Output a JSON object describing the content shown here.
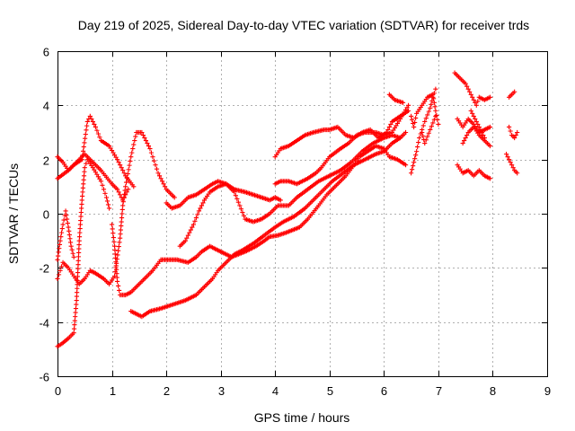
{
  "chart_data": {
    "type": "scatter",
    "title": "Day 219 of 2025, Sidereal Day-to-day VTEC variation (SDTVAR) for receiver trds",
    "xlabel": "GPS time / hours",
    "ylabel": "SDTVAR / TECUs",
    "xlim": [
      0,
      9
    ],
    "ylim": [
      -6,
      6
    ],
    "xticks": [
      0,
      1,
      2,
      3,
      4,
      5,
      6,
      7,
      8,
      9
    ],
    "yticks": [
      -6,
      -4,
      -2,
      0,
      2,
      4,
      6
    ],
    "grid": true,
    "marker": "+",
    "color": "#ff0000",
    "series": [
      {
        "points": [
          [
            0.0,
            2.1
          ],
          [
            0.1,
            1.9
          ],
          [
            0.2,
            1.6
          ],
          [
            0.35,
            1.9
          ],
          [
            0.5,
            2.2
          ],
          [
            0.65,
            1.9
          ],
          [
            0.8,
            1.6
          ],
          [
            1.0,
            1.1
          ],
          [
            1.1,
            0.9
          ],
          [
            1.2,
            0.5
          ],
          [
            1.3,
            0.9
          ]
        ]
      },
      {
        "points": [
          [
            0.0,
            1.3
          ],
          [
            0.1,
            1.45
          ],
          [
            0.2,
            1.6
          ],
          [
            0.3,
            1.8
          ],
          [
            0.45,
            2.0
          ],
          [
            0.55,
            3.4
          ],
          [
            0.6,
            3.6
          ],
          [
            0.7,
            3.2
          ],
          [
            0.8,
            2.7
          ],
          [
            0.95,
            2.5
          ],
          [
            1.1,
            2.0
          ],
          [
            1.25,
            1.4
          ],
          [
            1.4,
            1.0
          ]
        ]
      },
      {
        "points": [
          [
            0.0,
            -2.4
          ],
          [
            0.1,
            -1.8
          ],
          [
            0.2,
            -2.0
          ],
          [
            0.3,
            -2.3
          ],
          [
            0.4,
            -2.6
          ],
          [
            0.5,
            -2.4
          ],
          [
            0.6,
            -2.1
          ],
          [
            0.7,
            -2.2
          ],
          [
            0.85,
            -2.4
          ],
          [
            0.95,
            -2.6
          ],
          [
            1.05,
            -2.3
          ],
          [
            1.15,
            -0.9
          ],
          [
            1.2,
            0.3
          ],
          [
            1.25,
            1.0
          ],
          [
            1.35,
            2.1
          ],
          [
            1.45,
            3.0
          ],
          [
            1.55,
            3.0
          ],
          [
            1.7,
            2.4
          ],
          [
            1.85,
            1.5
          ],
          [
            2.0,
            0.9
          ],
          [
            2.15,
            0.6
          ]
        ]
      },
      {
        "points": [
          [
            0.0,
            -4.9
          ],
          [
            0.08,
            -4.8
          ],
          [
            0.2,
            -4.6
          ],
          [
            0.3,
            -4.4
          ],
          [
            0.35,
            -3.2
          ],
          [
            0.4,
            -1.0
          ],
          [
            0.45,
            0.5
          ],
          [
            0.5,
            1.7
          ],
          [
            0.55,
            2.0
          ],
          [
            0.65,
            1.7
          ],
          [
            0.8,
            1.2
          ],
          [
            0.9,
            0.6
          ],
          [
            0.95,
            0.2
          ]
        ]
      },
      {
        "points": [
          [
            0.0,
            -1.7
          ],
          [
            0.05,
            -1.0
          ],
          [
            0.1,
            -0.4
          ],
          [
            0.15,
            0.1
          ],
          [
            0.2,
            -0.5
          ],
          [
            0.25,
            -1.2
          ],
          [
            0.3,
            -1.6
          ]
        ]
      },
      {
        "points": [
          [
            1.0,
            -0.4
          ],
          [
            1.05,
            -1.2
          ],
          [
            1.1,
            -2.5
          ],
          [
            1.15,
            -3.0
          ],
          [
            1.25,
            -3.0
          ],
          [
            1.35,
            -2.9
          ],
          [
            1.45,
            -2.7
          ],
          [
            1.6,
            -2.4
          ],
          [
            1.75,
            -2.1
          ],
          [
            1.9,
            -1.7
          ],
          [
            2.05,
            -1.7
          ],
          [
            2.2,
            -1.7
          ],
          [
            2.4,
            -1.8
          ],
          [
            2.55,
            -1.6
          ],
          [
            2.65,
            -1.4
          ],
          [
            2.8,
            -1.2
          ],
          [
            3.0,
            -1.4
          ],
          [
            3.2,
            -1.6
          ],
          [
            3.45,
            -1.4
          ],
          [
            3.65,
            -1.2
          ],
          [
            3.8,
            -1.0
          ],
          [
            3.9,
            -0.85
          ],
          [
            4.05,
            -0.8
          ],
          [
            4.2,
            -0.7
          ],
          [
            4.45,
            -0.5
          ],
          [
            4.6,
            -0.2
          ],
          [
            4.8,
            0.3
          ],
          [
            4.95,
            0.7
          ],
          [
            5.1,
            1.0
          ],
          [
            5.3,
            1.4
          ],
          [
            5.45,
            1.8
          ],
          [
            5.55,
            2.1
          ],
          [
            5.7,
            2.3
          ],
          [
            5.85,
            2.5
          ],
          [
            6.0,
            2.4
          ],
          [
            6.1,
            2.1
          ],
          [
            6.25,
            2.0
          ],
          [
            6.4,
            1.8
          ]
        ]
      },
      {
        "points": [
          [
            1.35,
            -3.6
          ],
          [
            1.45,
            -3.7
          ],
          [
            1.55,
            -3.8
          ],
          [
            1.7,
            -3.6
          ],
          [
            1.9,
            -3.5
          ],
          [
            2.05,
            -3.4
          ],
          [
            2.2,
            -3.3
          ],
          [
            2.35,
            -3.2
          ],
          [
            2.55,
            -3.0
          ],
          [
            2.7,
            -2.7
          ],
          [
            2.85,
            -2.4
          ],
          [
            2.95,
            -2.1
          ],
          [
            3.1,
            -1.8
          ],
          [
            3.25,
            -1.5
          ],
          [
            3.4,
            -1.35
          ],
          [
            3.6,
            -1.1
          ],
          [
            3.8,
            -0.8
          ],
          [
            4.0,
            -0.5
          ],
          [
            4.15,
            -0.3
          ],
          [
            4.35,
            -0.1
          ],
          [
            4.55,
            0.2
          ],
          [
            4.7,
            0.5
          ],
          [
            4.9,
            0.9
          ],
          [
            5.05,
            1.2
          ],
          [
            5.25,
            1.5
          ],
          [
            5.45,
            1.8
          ],
          [
            5.65,
            2.0
          ],
          [
            5.85,
            2.2
          ],
          [
            6.0,
            2.3
          ],
          [
            6.15,
            2.6
          ],
          [
            6.3,
            2.8
          ],
          [
            6.4,
            3.0
          ]
        ]
      },
      {
        "points": [
          [
            2.0,
            0.4
          ],
          [
            2.1,
            0.2
          ],
          [
            2.25,
            0.3
          ],
          [
            2.4,
            0.6
          ],
          [
            2.55,
            0.7
          ],
          [
            2.7,
            0.9
          ],
          [
            2.85,
            1.1
          ],
          [
            2.95,
            1.2
          ],
          [
            3.1,
            1.1
          ],
          [
            3.25,
            0.9
          ],
          [
            3.45,
            0.8
          ],
          [
            3.6,
            0.7
          ],
          [
            3.75,
            0.6
          ],
          [
            3.9,
            0.5
          ],
          [
            4.0,
            0.6
          ],
          [
            4.1,
            0.5
          ]
        ]
      },
      {
        "points": [
          [
            2.25,
            -1.2
          ],
          [
            2.35,
            -1.0
          ],
          [
            2.5,
            -0.4
          ],
          [
            2.6,
            0.1
          ],
          [
            2.7,
            0.5
          ],
          [
            2.8,
            0.8
          ],
          [
            2.95,
            1.0
          ],
          [
            3.1,
            1.1
          ],
          [
            3.25,
            0.8
          ],
          [
            3.35,
            0.3
          ],
          [
            3.45,
            -0.2
          ],
          [
            3.6,
            -0.3
          ],
          [
            3.75,
            -0.2
          ],
          [
            3.9,
            0.0
          ],
          [
            4.05,
            0.3
          ],
          [
            4.15,
            0.3
          ],
          [
            4.25,
            0.3
          ],
          [
            4.4,
            0.6
          ],
          [
            4.6,
            0.9
          ],
          [
            4.8,
            1.2
          ],
          [
            5.0,
            1.4
          ],
          [
            5.2,
            1.6
          ],
          [
            5.4,
            1.9
          ],
          [
            5.6,
            2.3
          ],
          [
            5.8,
            2.6
          ],
          [
            6.0,
            2.8
          ],
          [
            6.15,
            2.9
          ],
          [
            6.3,
            2.8
          ]
        ]
      },
      {
        "points": [
          [
            4.0,
            1.1
          ],
          [
            4.1,
            1.2
          ],
          [
            4.25,
            1.2
          ],
          [
            4.4,
            1.1
          ],
          [
            4.6,
            1.3
          ],
          [
            4.75,
            1.5
          ],
          [
            4.85,
            1.7
          ],
          [
            5.0,
            2.1
          ],
          [
            5.2,
            2.4
          ],
          [
            5.35,
            2.6
          ],
          [
            5.5,
            2.9
          ],
          [
            5.65,
            3.0
          ],
          [
            5.85,
            3.0
          ],
          [
            6.0,
            2.9
          ],
          [
            6.15,
            3.0
          ],
          [
            6.3,
            3.5
          ],
          [
            6.45,
            4.0
          ]
        ]
      },
      {
        "points": [
          [
            4.0,
            2.1
          ],
          [
            4.1,
            2.4
          ],
          [
            4.25,
            2.5
          ],
          [
            4.4,
            2.7
          ],
          [
            4.55,
            2.9
          ],
          [
            4.7,
            3.0
          ],
          [
            4.9,
            3.1
          ],
          [
            5.0,
            3.1
          ],
          [
            5.15,
            3.2
          ],
          [
            5.3,
            2.9
          ],
          [
            5.45,
            2.8
          ],
          [
            5.6,
            3.0
          ],
          [
            5.75,
            3.1
          ],
          [
            5.9,
            2.8
          ],
          [
            6.05,
            3.0
          ],
          [
            6.15,
            3.4
          ],
          [
            6.3,
            3.6
          ],
          [
            6.45,
            3.8
          ]
        ]
      },
      {
        "points": [
          [
            6.1,
            4.4
          ],
          [
            6.2,
            4.2
          ],
          [
            6.35,
            4.1
          ]
        ]
      },
      {
        "points": [
          [
            6.5,
            3.6
          ],
          [
            6.55,
            3.2
          ],
          [
            6.6,
            3.7
          ],
          [
            6.7,
            4.0
          ],
          [
            6.8,
            4.3
          ],
          [
            6.9,
            4.4
          ],
          [
            6.95,
            3.8
          ],
          [
            7.0,
            3.3
          ]
        ]
      },
      {
        "points": [
          [
            6.5,
            1.5
          ],
          [
            6.55,
            1.9
          ],
          [
            6.6,
            2.3
          ],
          [
            6.65,
            2.8
          ],
          [
            6.75,
            3.4
          ],
          [
            6.85,
            3.9
          ],
          [
            6.9,
            4.3
          ],
          [
            6.95,
            4.6
          ]
        ]
      },
      {
        "points": [
          [
            6.7,
            3.0
          ],
          [
            6.75,
            2.6
          ],
          [
            6.85,
            3.1
          ],
          [
            6.95,
            3.6
          ]
        ]
      },
      {
        "points": [
          [
            7.3,
            5.2
          ],
          [
            7.4,
            5.0
          ],
          [
            7.5,
            4.8
          ],
          [
            7.6,
            4.4
          ],
          [
            7.7,
            4.0
          ],
          [
            7.75,
            4.3
          ],
          [
            7.85,
            4.2
          ],
          [
            7.95,
            4.3
          ]
        ]
      },
      {
        "points": [
          [
            7.35,
            3.5
          ],
          [
            7.45,
            3.2
          ],
          [
            7.55,
            3.5
          ],
          [
            7.65,
            3.3
          ],
          [
            7.75,
            3.0
          ],
          [
            7.85,
            3.1
          ],
          [
            7.95,
            3.2
          ]
        ]
      },
      {
        "points": [
          [
            7.35,
            1.8
          ],
          [
            7.45,
            1.5
          ],
          [
            7.55,
            1.6
          ],
          [
            7.65,
            1.4
          ],
          [
            7.75,
            1.6
          ],
          [
            7.85,
            1.4
          ],
          [
            7.95,
            1.3
          ]
        ]
      },
      {
        "points": [
          [
            7.45,
            2.6
          ],
          [
            7.55,
            3.0
          ],
          [
            7.65,
            3.2
          ],
          [
            7.75,
            2.9
          ],
          [
            7.85,
            2.7
          ],
          [
            7.95,
            2.5
          ]
        ]
      },
      {
        "points": [
          [
            7.6,
            3.8
          ],
          [
            7.7,
            3.4
          ],
          [
            7.8,
            3.0
          ],
          [
            7.85,
            2.8
          ]
        ]
      },
      {
        "points": [
          [
            8.3,
            4.3
          ],
          [
            8.35,
            4.4
          ],
          [
            8.4,
            4.5
          ]
        ]
      },
      {
        "points": [
          [
            8.3,
            3.2
          ],
          [
            8.35,
            2.9
          ],
          [
            8.4,
            2.8
          ],
          [
            8.45,
            3.0
          ]
        ]
      },
      {
        "points": [
          [
            8.25,
            2.2
          ],
          [
            8.3,
            2.0
          ],
          [
            8.35,
            1.8
          ],
          [
            8.4,
            1.6
          ],
          [
            8.45,
            1.5
          ]
        ]
      }
    ]
  }
}
